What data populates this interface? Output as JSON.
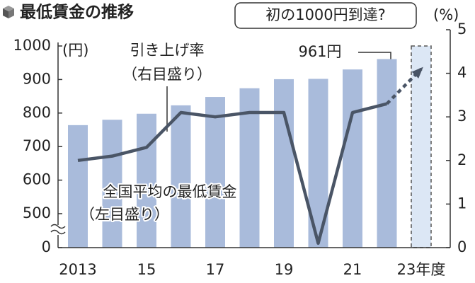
{
  "chart_data": {
    "type": "bar",
    "title": "最低賃金の推移",
    "categories": [
      "2013",
      null,
      "15",
      null,
      "17",
      null,
      "19",
      null,
      "21",
      null,
      "23年度"
    ],
    "series": [
      {
        "type": "bar",
        "color": "#a9bbdb",
        "values": [
          764,
          780,
          798,
          823,
          848,
          874,
          901,
          902,
          930,
          961,
          null
        ]
      },
      {
        "type": "bar",
        "color": "#dce7f5",
        "dashed": true,
        "values": [
          null,
          null,
          null,
          null,
          null,
          null,
          null,
          null,
          null,
          null,
          1000
        ]
      },
      {
        "type": "line",
        "axis": "y2",
        "color": "#4a5566",
        "values": [
          2.0,
          2.1,
          2.3,
          3.1,
          3.0,
          3.1,
          3.1,
          0.1,
          3.1,
          3.3,
          null
        ]
      },
      {
        "type": "line",
        "axis": "y2",
        "color": "#4a5566",
        "dashed": true,
        "values": [
          null,
          null,
          null,
          null,
          null,
          null,
          null,
          null,
          null,
          3.3,
          4.1
        ]
      }
    ],
    "ylim": [
      0,
      1000
    ],
    "yticks": [
      0,
      500,
      600,
      700,
      800,
      900,
      1000
    ],
    "axis_break": true,
    "y2lim": [
      0,
      5
    ],
    "y2ticks": [
      0,
      1,
      2,
      3,
      4,
      5
    ],
    "y_unit": "(円)",
    "y2_unit": "(%)",
    "annotations": {
      "target": "初の1000円到達?",
      "rate": "引き上げ率",
      "rate_axis": "（右目盛り）",
      "last": "961円",
      "wage": "全国平均の最低賃金",
      "wage_axis": "（左目盛り）"
    }
  }
}
